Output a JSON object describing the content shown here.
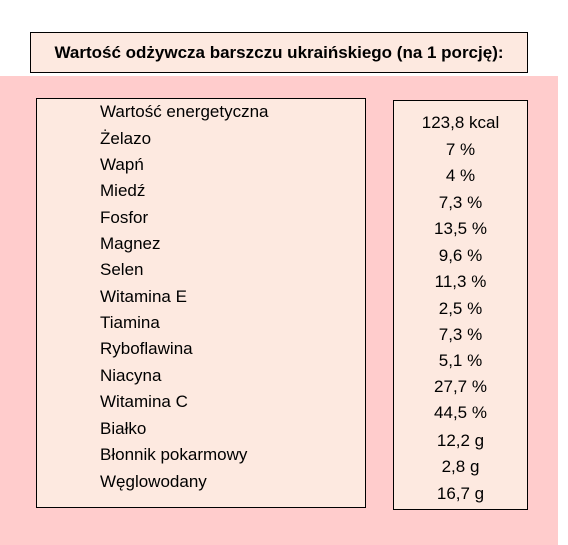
{
  "title": "Wartość odżywcza barszczu ukraińskiego (na 1 porcję):",
  "nutrients": [
    {
      "name": "Wartość energetyczna",
      "value": "123,8 kcal"
    },
    {
      "name": "Żelazo",
      "value": "7 %"
    },
    {
      "name": "Wapń",
      "value": "4 %"
    },
    {
      "name": "Miedź",
      "value": "7,3 %"
    },
    {
      "name": "Fosfor",
      "value": "13,5 %"
    },
    {
      "name": "Magnez",
      "value": "9,6 %"
    },
    {
      "name": "Selen",
      "value": "11,3 %"
    },
    {
      "name": "Witamina E",
      "value": "2,5 %"
    },
    {
      "name": "Tiamina",
      "value": "7,3 %"
    },
    {
      "name": "Ryboflawina",
      "value": "5,1 %"
    },
    {
      "name": "Niacyna",
      "value": "27,7 %"
    },
    {
      "name": "Witamina C",
      "value": "44,5 %"
    },
    {
      "name": "Białko",
      "value": "12,2 g"
    },
    {
      "name": "Błonnik pokarmowy",
      "value": "2,8 g"
    },
    {
      "name": "Węglowodany",
      "value": "16,7 g"
    }
  ]
}
